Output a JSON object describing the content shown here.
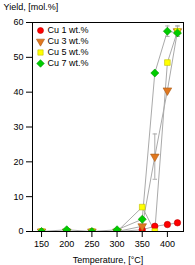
{
  "chart_data": {
    "type": "line",
    "xlabel": "Temperature, [°C]",
    "ylabel": "Yield, [mol.%]",
    "xlim": [
      132,
      432
    ],
    "ylim": [
      0,
      60
    ],
    "xticks": [
      150,
      200,
      250,
      300,
      350,
      400
    ],
    "yticks": [
      0,
      10,
      20,
      30,
      40,
      50,
      60
    ],
    "grid": false,
    "legend": "upper left",
    "color": "#aaaaaa",
    "x": [
      150,
      200,
      250,
      300,
      350,
      375,
      400,
      420
    ],
    "series": [
      {
        "name": "Cu 1 wt.%",
        "color": "#FF0000",
        "marker": "circle",
        "values": [
          0,
          0,
          0,
          0,
          0.5,
          1.5,
          2.0,
          2.5
        ],
        "yerr": [
          0,
          0,
          0,
          0,
          0,
          0,
          0,
          0
        ]
      },
      {
        "name": "Cu 3 wt.%",
        "color": "#E07820",
        "marker": "triangle_down",
        "values": [
          0,
          0,
          0,
          0,
          1.5,
          21.5,
          40.5,
          57.5
        ],
        "yerr": [
          0,
          0,
          0,
          0,
          0,
          6.5,
          0,
          1.5
        ]
      },
      {
        "name": "Cu 5 wt.%",
        "color": "#FFFF00",
        "marker": "square",
        "values": [
          0,
          0,
          0,
          0,
          7.0,
          0,
          48.5,
          57.5
        ],
        "yerr": [
          0,
          0,
          0,
          0,
          0,
          0,
          0,
          1.5
        ]
      },
      {
        "name": "Cu 7 wt.%",
        "color": "#00CC00",
        "marker": "diamond",
        "values": [
          0,
          0.5,
          0,
          0.5,
          3.5,
          45.5,
          57.5,
          57.0
        ],
        "yerr": [
          0,
          0,
          0,
          0,
          0,
          0,
          1.5,
          0
        ]
      }
    ]
  }
}
